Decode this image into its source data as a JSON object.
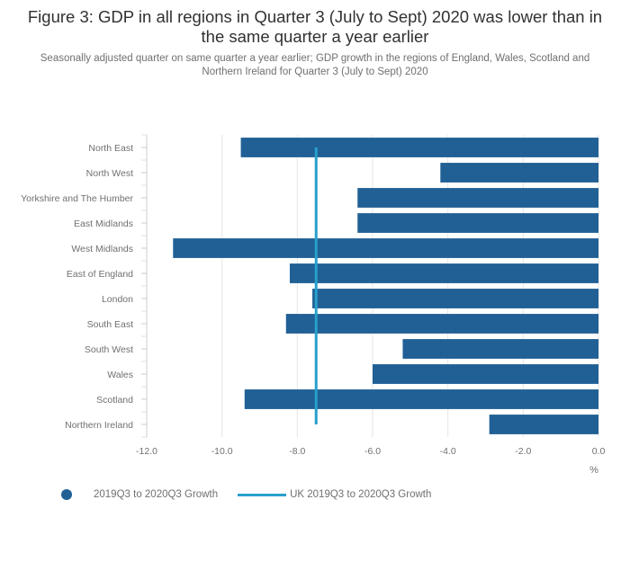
{
  "header": {
    "title": "Figure 3: GDP in all regions in Quarter 3 (July to Sept) 2020 was lower than in the same quarter a year earlier",
    "subtitle": "Seasonally adjusted quarter on same quarter a year earlier; GDP growth in the regions of England, Wales, Scotland and Northern Ireland for Quarter 3 (July to Sept) 2020"
  },
  "colors": {
    "bar": "#206095",
    "uk_line": "#27a0cc",
    "grid": "#e6e6e6",
    "axis": "#cccccc"
  },
  "chart_data": {
    "type": "bar",
    "orientation": "horizontal",
    "categories": [
      "North East",
      "North West",
      "Yorkshire and The Humber",
      "East Midlands",
      "West Midlands",
      "East of England",
      "London",
      "South East",
      "South West",
      "Wales",
      "Scotland",
      "Northern Ireland"
    ],
    "series": [
      {
        "name": "2019Q3 to 2020Q3 Growth",
        "values": [
          -9.5,
          -4.2,
          -6.4,
          -6.4,
          -11.3,
          -8.2,
          -7.6,
          -8.3,
          -5.2,
          -6.0,
          -9.4,
          -2.9
        ]
      }
    ],
    "reference_line": {
      "name": "UK 2019Q3 to 2020Q3 Growth",
      "value": -7.5
    },
    "xlim": [
      -12,
      0
    ],
    "xticks": [
      "-12.0",
      "-10.0",
      "-8.0",
      "-6.0",
      "-4.0",
      "-2.0",
      "0.0"
    ],
    "xticks_values": [
      -12,
      -10,
      -8,
      -6,
      -4,
      -2,
      0
    ],
    "xunit": "%",
    "grid": true,
    "legend_position": "bottom-left"
  }
}
